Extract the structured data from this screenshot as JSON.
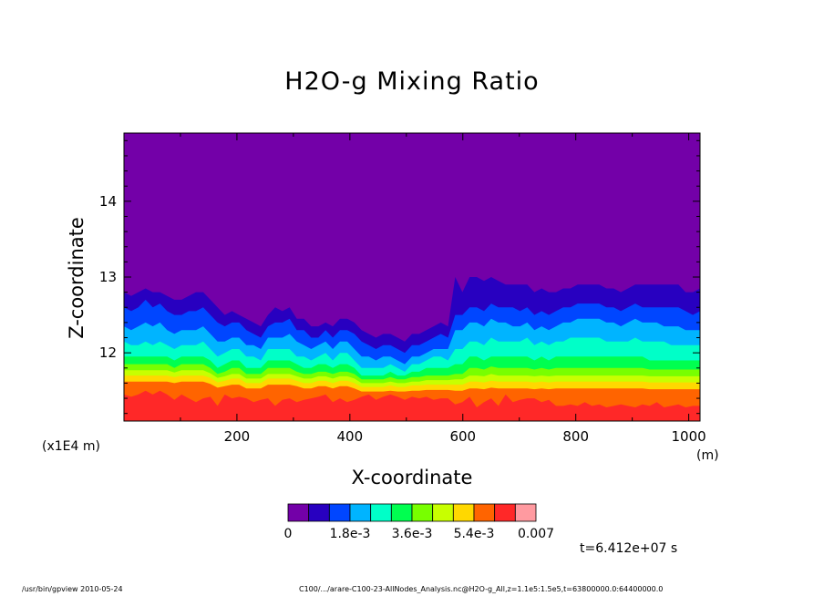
{
  "chart_data": {
    "type": "heatmap",
    "title": "H2O-g Mixing Ratio",
    "xlabel": "X-coordinate",
    "ylabel": "Z-coordinate",
    "x_unit": "(m)",
    "y_unit": "(x1E4 m)",
    "xlim": [
      0,
      1020
    ],
    "ylim": [
      11.1,
      14.9
    ],
    "x_ticks": [
      200,
      400,
      600,
      800,
      1000
    ],
    "y_ticks": [
      12,
      13,
      14
    ],
    "colorbar": {
      "colors": [
        "#7300a8",
        "#2800c0",
        "#0046ff",
        "#00b4ff",
        "#00ffc8",
        "#00ff50",
        "#78ff00",
        "#c8ff00",
        "#ffd800",
        "#ff6400",
        "#ff2828",
        "#ff9aa0"
      ],
      "labels": [
        "0",
        "1.8e-3",
        "3.6e-3",
        "5.4e-3",
        "0.007"
      ],
      "range": [
        0,
        0.007
      ]
    },
    "layers": [
      {
        "color": "#2800c0",
        "top": [
          12.8,
          12.75,
          12.8,
          12.85,
          12.8,
          12.8,
          12.75,
          12.7,
          12.7,
          12.75,
          12.8,
          12.8,
          12.7,
          12.6,
          12.5,
          12.55,
          12.5,
          12.45,
          12.4,
          12.35,
          12.5,
          12.6,
          12.55,
          12.6,
          12.45,
          12.45,
          12.35,
          12.35,
          12.4,
          12.35,
          12.45,
          12.45,
          12.4,
          12.3,
          12.25,
          12.2,
          12.25,
          12.25,
          12.2,
          12.15,
          12.25,
          12.25,
          12.3,
          12.35,
          12.4,
          12.35,
          13,
          12.8,
          13,
          13,
          12.95,
          13,
          12.95,
          12.9,
          12.9,
          12.9,
          12.9,
          12.8,
          12.85,
          12.8,
          12.8,
          12.85,
          12.85,
          12.9,
          12.9,
          12.9,
          12.9,
          12.85,
          12.85,
          12.8,
          12.85,
          12.9,
          12.9,
          12.9,
          12.9,
          12.9,
          12.9,
          12.9,
          12.8,
          12.8,
          12.85
        ]
      },
      {
        "color": "#0046ff",
        "top": [
          12.6,
          12.55,
          12.6,
          12.7,
          12.6,
          12.65,
          12.55,
          12.5,
          12.5,
          12.55,
          12.55,
          12.6,
          12.5,
          12.4,
          12.35,
          12.4,
          12.4,
          12.3,
          12.25,
          12.2,
          12.35,
          12.4,
          12.4,
          12.45,
          12.3,
          12.3,
          12.2,
          12.2,
          12.3,
          12.2,
          12.3,
          12.3,
          12.25,
          12.15,
          12.1,
          12.05,
          12.1,
          12.1,
          12.05,
          12,
          12.1,
          12.1,
          12.15,
          12.2,
          12.25,
          12.2,
          12.5,
          12.5,
          12.6,
          12.6,
          12.55,
          12.65,
          12.6,
          12.6,
          12.6,
          12.55,
          12.6,
          12.5,
          12.55,
          12.5,
          12.55,
          12.6,
          12.6,
          12.65,
          12.65,
          12.65,
          12.65,
          12.6,
          12.6,
          12.55,
          12.6,
          12.65,
          12.6,
          12.6,
          12.6,
          12.6,
          12.6,
          12.6,
          12.55,
          12.5,
          12.55
        ]
      },
      {
        "color": "#00b4ff",
        "top": [
          12.35,
          12.3,
          12.35,
          12.4,
          12.35,
          12.4,
          12.3,
          12.25,
          12.3,
          12.3,
          12.3,
          12.35,
          12.25,
          12.15,
          12.15,
          12.2,
          12.2,
          12.1,
          12.1,
          12.05,
          12.2,
          12.2,
          12.2,
          12.25,
          12.15,
          12.1,
          12.05,
          12.1,
          12.15,
          12.05,
          12.15,
          12.15,
          12.05,
          11.95,
          11.95,
          11.9,
          11.95,
          11.95,
          11.9,
          11.85,
          11.95,
          11.95,
          12,
          12.05,
          12.05,
          12.05,
          12.3,
          12.3,
          12.4,
          12.4,
          12.35,
          12.45,
          12.4,
          12.4,
          12.35,
          12.35,
          12.4,
          12.3,
          12.35,
          12.3,
          12.35,
          12.4,
          12.4,
          12.45,
          12.45,
          12.45,
          12.45,
          12.4,
          12.4,
          12.35,
          12.4,
          12.45,
          12.4,
          12.4,
          12.4,
          12.35,
          12.35,
          12.35,
          12.3,
          12.3,
          12.3
        ]
      },
      {
        "color": "#00ffc8",
        "top": [
          12.15,
          12.1,
          12.1,
          12.15,
          12.1,
          12.15,
          12.1,
          12.05,
          12.1,
          12.1,
          12.1,
          12.15,
          12.05,
          11.95,
          12,
          12.05,
          12.05,
          11.95,
          11.95,
          11.9,
          12.05,
          12.05,
          12.05,
          12.05,
          11.95,
          11.95,
          11.9,
          11.95,
          12,
          11.9,
          12,
          12,
          11.9,
          11.8,
          11.8,
          11.8,
          11.8,
          11.85,
          11.8,
          11.75,
          11.85,
          11.85,
          11.9,
          11.95,
          11.95,
          11.9,
          12.05,
          12.05,
          12.15,
          12.15,
          12.1,
          12.2,
          12.15,
          12.15,
          12.15,
          12.15,
          12.2,
          12.1,
          12.15,
          12.1,
          12.15,
          12.15,
          12.2,
          12.2,
          12.2,
          12.2,
          12.2,
          12.15,
          12.15,
          12.15,
          12.15,
          12.2,
          12.15,
          12.15,
          12.15,
          12.15,
          12.1,
          12.1,
          12.1,
          12.1,
          12.1
        ]
      },
      {
        "color": "#00ff50",
        "top": [
          11.95,
          11.95,
          11.95,
          11.95,
          11.95,
          11.95,
          11.95,
          11.9,
          11.95,
          11.95,
          11.95,
          11.95,
          11.9,
          11.8,
          11.85,
          11.9,
          11.9,
          11.8,
          11.8,
          11.8,
          11.9,
          11.9,
          11.9,
          11.9,
          11.85,
          11.8,
          11.8,
          11.85,
          11.85,
          11.8,
          11.85,
          11.85,
          11.8,
          11.7,
          11.7,
          11.7,
          11.7,
          11.75,
          11.7,
          11.7,
          11.75,
          11.75,
          11.8,
          11.8,
          11.8,
          11.8,
          11.85,
          11.85,
          11.95,
          11.95,
          11.9,
          11.95,
          11.95,
          11.95,
          11.95,
          11.95,
          11.95,
          11.9,
          11.95,
          11.9,
          11.95,
          11.95,
          11.95,
          11.95,
          11.95,
          11.95,
          11.95,
          11.95,
          11.95,
          11.95,
          11.95,
          11.95,
          11.95,
          11.9,
          11.9,
          11.9,
          11.9,
          11.9,
          11.9,
          11.9,
          11.9
        ]
      },
      {
        "color": "#78ff00",
        "top": [
          11.85,
          11.85,
          11.85,
          11.85,
          11.85,
          11.85,
          11.85,
          11.8,
          11.85,
          11.85,
          11.85,
          11.85,
          11.8,
          11.72,
          11.75,
          11.8,
          11.8,
          11.72,
          11.72,
          11.72,
          11.8,
          11.8,
          11.8,
          11.8,
          11.75,
          11.72,
          11.72,
          11.75,
          11.75,
          11.72,
          11.75,
          11.75,
          11.72,
          11.65,
          11.65,
          11.65,
          11.65,
          11.68,
          11.65,
          11.65,
          11.68,
          11.68,
          11.7,
          11.7,
          11.7,
          11.7,
          11.72,
          11.72,
          11.8,
          11.8,
          11.78,
          11.82,
          11.8,
          11.8,
          11.8,
          11.8,
          11.8,
          11.78,
          11.8,
          11.78,
          11.8,
          11.8,
          11.8,
          11.8,
          11.8,
          11.8,
          11.8,
          11.8,
          11.8,
          11.8,
          11.8,
          11.8,
          11.8,
          11.78,
          11.78,
          11.78,
          11.78,
          11.78,
          11.78,
          11.78,
          11.78
        ]
      },
      {
        "color": "#c8ff00",
        "top": [
          11.77,
          11.77,
          11.77,
          11.77,
          11.77,
          11.77,
          11.77,
          11.74,
          11.77,
          11.77,
          11.77,
          11.77,
          11.73,
          11.67,
          11.69,
          11.72,
          11.72,
          11.66,
          11.66,
          11.66,
          11.72,
          11.72,
          11.72,
          11.72,
          11.69,
          11.66,
          11.66,
          11.69,
          11.69,
          11.66,
          11.69,
          11.69,
          11.66,
          11.6,
          11.6,
          11.6,
          11.6,
          11.62,
          11.6,
          11.6,
          11.62,
          11.62,
          11.64,
          11.64,
          11.64,
          11.64,
          11.65,
          11.65,
          11.7,
          11.7,
          11.69,
          11.72,
          11.7,
          11.7,
          11.7,
          11.7,
          11.7,
          11.69,
          11.7,
          11.69,
          11.7,
          11.7,
          11.7,
          11.7,
          11.7,
          11.7,
          11.7,
          11.7,
          11.7,
          11.7,
          11.7,
          11.7,
          11.7,
          11.69,
          11.69,
          11.69,
          11.69,
          11.69,
          11.69,
          11.69,
          11.69
        ]
      },
      {
        "color": "#ffd800",
        "top": [
          11.7,
          11.7,
          11.7,
          11.7,
          11.7,
          11.7,
          11.7,
          11.68,
          11.7,
          11.7,
          11.7,
          11.7,
          11.67,
          11.61,
          11.63,
          11.66,
          11.66,
          11.6,
          11.6,
          11.6,
          11.66,
          11.66,
          11.66,
          11.66,
          11.63,
          11.6,
          11.6,
          11.63,
          11.63,
          11.6,
          11.63,
          11.63,
          11.6,
          11.55,
          11.55,
          11.55,
          11.55,
          11.57,
          11.55,
          11.55,
          11.57,
          11.57,
          11.58,
          11.58,
          11.58,
          11.58,
          11.58,
          11.58,
          11.62,
          11.62,
          11.61,
          11.63,
          11.62,
          11.62,
          11.62,
          11.62,
          11.62,
          11.61,
          11.62,
          11.61,
          11.62,
          11.62,
          11.62,
          11.62,
          11.62,
          11.62,
          11.62,
          11.62,
          11.62,
          11.62,
          11.62,
          11.62,
          11.62,
          11.61,
          11.61,
          11.61,
          11.61,
          11.61,
          11.61,
          11.61,
          11.61
        ]
      },
      {
        "color": "#ff6400",
        "top": [
          11.62,
          11.62,
          11.62,
          11.62,
          11.62,
          11.62,
          11.62,
          11.6,
          11.62,
          11.62,
          11.62,
          11.62,
          11.59,
          11.54,
          11.56,
          11.58,
          11.58,
          11.53,
          11.53,
          11.53,
          11.58,
          11.58,
          11.58,
          11.58,
          11.56,
          11.53,
          11.53,
          11.56,
          11.56,
          11.53,
          11.56,
          11.56,
          11.53,
          11.49,
          11.49,
          11.49,
          11.49,
          11.5,
          11.49,
          11.49,
          11.5,
          11.5,
          11.51,
          11.51,
          11.51,
          11.51,
          11.5,
          11.5,
          11.53,
          11.53,
          11.52,
          11.54,
          11.53,
          11.53,
          11.53,
          11.53,
          11.53,
          11.52,
          11.53,
          11.52,
          11.53,
          11.53,
          11.53,
          11.53,
          11.53,
          11.53,
          11.53,
          11.53,
          11.53,
          11.53,
          11.53,
          11.53,
          11.53,
          11.52,
          11.52,
          11.52,
          11.52,
          11.52,
          11.52,
          11.52,
          11.52
        ]
      },
      {
        "color": "#ff2828",
        "top": [
          11.45,
          11.42,
          11.45,
          11.5,
          11.45,
          11.5,
          11.45,
          11.38,
          11.45,
          11.4,
          11.35,
          11.4,
          11.42,
          11.3,
          11.45,
          11.4,
          11.42,
          11.4,
          11.35,
          11.38,
          11.4,
          11.3,
          11.38,
          11.4,
          11.35,
          11.38,
          11.4,
          11.42,
          11.45,
          11.35,
          11.4,
          11.35,
          11.38,
          11.42,
          11.45,
          11.38,
          11.42,
          11.45,
          11.42,
          11.38,
          11.42,
          11.4,
          11.42,
          11.38,
          11.4,
          11.4,
          11.32,
          11.35,
          11.42,
          11.28,
          11.35,
          11.4,
          11.3,
          11.45,
          11.35,
          11.38,
          11.4,
          11.4,
          11.35,
          11.38,
          11.3,
          11.3,
          11.32,
          11.3,
          11.35,
          11.3,
          11.32,
          11.28,
          11.3,
          11.32,
          11.3,
          11.28,
          11.32,
          11.3,
          11.35,
          11.28,
          11.3,
          11.32,
          11.28,
          11.3,
          11.3
        ]
      }
    ]
  },
  "labels": {
    "y_unit": "(x1E4 m)",
    "x_unit": "(m)",
    "timestamp": "t=6.412e+07 s",
    "footer_left": "/usr/bin/gpview   2010-05-24",
    "footer_right": "C100/.../arare-C100-23-AllNodes_Analysis.nc@H2O-g_All,z=1.1e5:1.5e5,t=63800000.0:64400000.0"
  }
}
